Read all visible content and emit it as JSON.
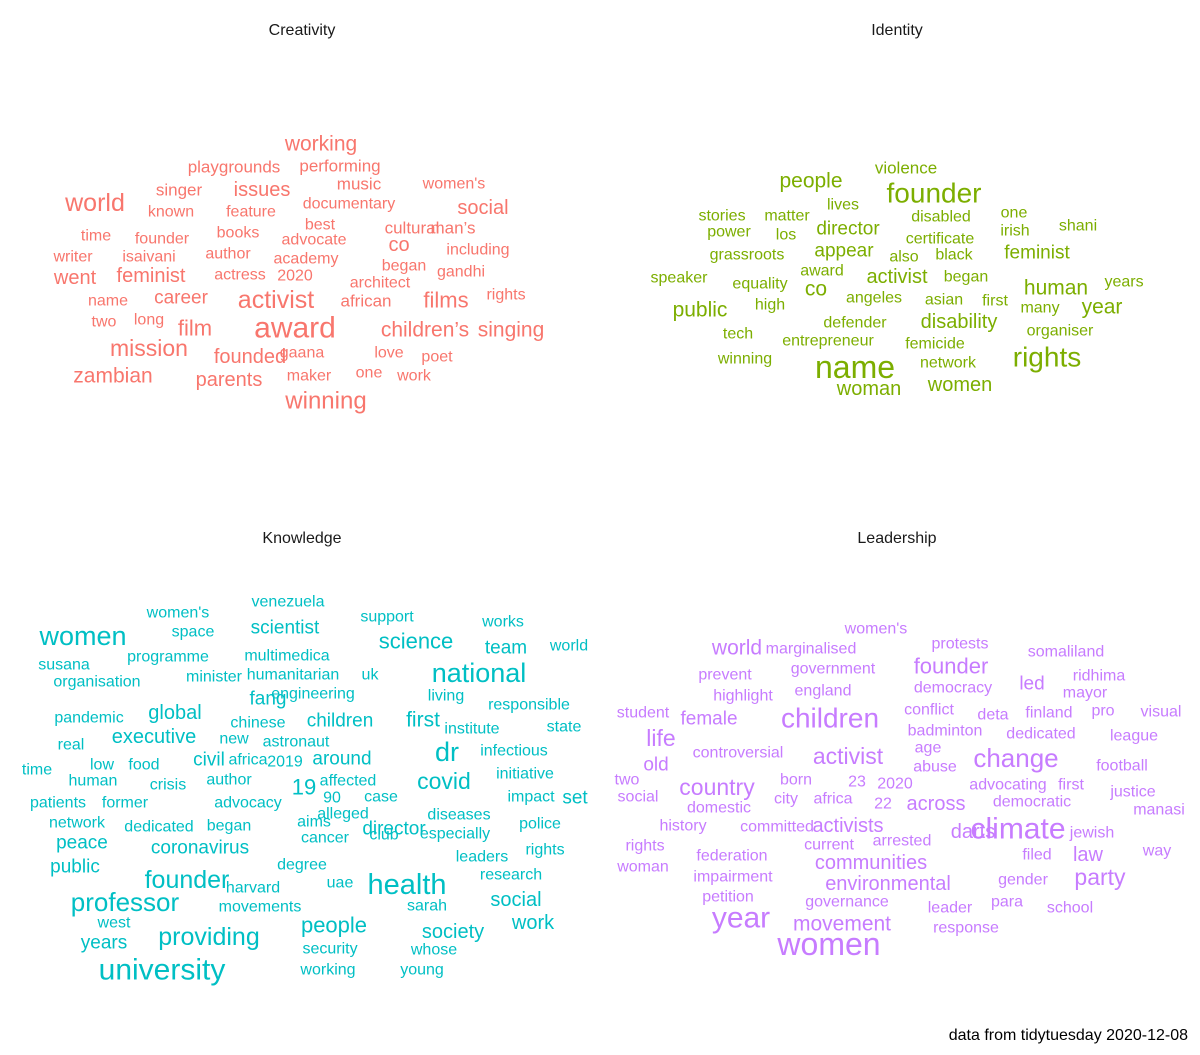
{
  "chart_data": [
    {
      "type": "wordcloud",
      "title": "Creativity",
      "color": "#F8766D",
      "words": [
        {
          "text": "award",
          "size": 30
        },
        {
          "text": "activist",
          "size": 25
        },
        {
          "text": "working",
          "size": 21
        },
        {
          "text": "world",
          "size": 25
        },
        {
          "text": "winning",
          "size": 24
        },
        {
          "text": "films",
          "size": 22
        },
        {
          "text": "mission",
          "size": 23
        },
        {
          "text": "film",
          "size": 22
        },
        {
          "text": "children’s",
          "size": 21
        },
        {
          "text": "singing",
          "size": 21
        },
        {
          "text": "zambian",
          "size": 21
        },
        {
          "text": "parents",
          "size": 20
        },
        {
          "text": "founded",
          "size": 20
        },
        {
          "text": "co",
          "size": 20
        },
        {
          "text": "social",
          "size": 20
        },
        {
          "text": "issues",
          "size": 20
        },
        {
          "text": "feminist",
          "size": 20
        },
        {
          "text": "went",
          "size": 20
        },
        {
          "text": "career",
          "size": 19
        },
        {
          "text": "playgrounds",
          "size": 17
        },
        {
          "text": "performing",
          "size": 17
        },
        {
          "text": "music",
          "size": 17
        },
        {
          "text": "singer",
          "size": 17
        },
        {
          "text": "women's",
          "size": 16
        },
        {
          "text": "known",
          "size": 16
        },
        {
          "text": "feature",
          "size": 16
        },
        {
          "text": "documentary",
          "size": 16
        },
        {
          "text": "best",
          "size": 16
        },
        {
          "text": "time",
          "size": 16
        },
        {
          "text": "founder",
          "size": 16
        },
        {
          "text": "books",
          "size": 16
        },
        {
          "text": "advocate",
          "size": 16
        },
        {
          "text": "cultural",
          "size": 17
        },
        {
          "text": "man’s",
          "size": 17
        },
        {
          "text": "including",
          "size": 16
        },
        {
          "text": "writer",
          "size": 16
        },
        {
          "text": "isaivani",
          "size": 16
        },
        {
          "text": "author",
          "size": 16
        },
        {
          "text": "academy",
          "size": 16
        },
        {
          "text": "began",
          "size": 16
        },
        {
          "text": "actress",
          "size": 16
        },
        {
          "text": "2020",
          "size": 16
        },
        {
          "text": "architect",
          "size": 16
        },
        {
          "text": "gandhi",
          "size": 16
        },
        {
          "text": "name",
          "size": 16
        },
        {
          "text": "african",
          "size": 17
        },
        {
          "text": "rights",
          "size": 16
        },
        {
          "text": "two",
          "size": 16
        },
        {
          "text": "long",
          "size": 16
        },
        {
          "text": "gaana",
          "size": 16
        },
        {
          "text": "love",
          "size": 16
        },
        {
          "text": "poet",
          "size": 16
        },
        {
          "text": "one",
          "size": 16
        },
        {
          "text": "maker",
          "size": 16
        },
        {
          "text": "work",
          "size": 16
        }
      ]
    },
    {
      "type": "wordcloud",
      "title": "Identity",
      "color": "#7CAE00",
      "words": [
        {
          "text": "name",
          "size": 32
        },
        {
          "text": "founder",
          "size": 28
        },
        {
          "text": "rights",
          "size": 28
        },
        {
          "text": "people",
          "size": 21
        },
        {
          "text": "violence",
          "size": 17
        },
        {
          "text": "public",
          "size": 21
        },
        {
          "text": "co",
          "size": 21
        },
        {
          "text": "human",
          "size": 21
        },
        {
          "text": "year",
          "size": 21
        },
        {
          "text": "disability",
          "size": 20
        },
        {
          "text": "woman",
          "size": 20
        },
        {
          "text": "women",
          "size": 20
        },
        {
          "text": "director",
          "size": 19
        },
        {
          "text": "appear",
          "size": 19
        },
        {
          "text": "activist",
          "size": 20
        },
        {
          "text": "feminist",
          "size": 19
        },
        {
          "text": "stories",
          "size": 16
        },
        {
          "text": "matter",
          "size": 16
        },
        {
          "text": "lives",
          "size": 16
        },
        {
          "text": "disabled",
          "size": 16
        },
        {
          "text": "one",
          "size": 16
        },
        {
          "text": "power",
          "size": 16
        },
        {
          "text": "los",
          "size": 16
        },
        {
          "text": "certificate",
          "size": 16
        },
        {
          "text": "irish",
          "size": 16
        },
        {
          "text": "shani",
          "size": 16
        },
        {
          "text": "grassroots",
          "size": 16
        },
        {
          "text": "also",
          "size": 16
        },
        {
          "text": "black",
          "size": 16
        },
        {
          "text": "speaker",
          "size": 16
        },
        {
          "text": "equality",
          "size": 16
        },
        {
          "text": "award",
          "size": 16
        },
        {
          "text": "began",
          "size": 16
        },
        {
          "text": "years",
          "size": 16
        },
        {
          "text": "high",
          "size": 16
        },
        {
          "text": "angeles",
          "size": 16
        },
        {
          "text": "asian",
          "size": 16
        },
        {
          "text": "first",
          "size": 16
        },
        {
          "text": "many",
          "size": 16
        },
        {
          "text": "tech",
          "size": 16
        },
        {
          "text": "defender",
          "size": 16
        },
        {
          "text": "organiser",
          "size": 16
        },
        {
          "text": "entrepreneur",
          "size": 16
        },
        {
          "text": "femicide",
          "size": 16
        },
        {
          "text": "winning",
          "size": 16
        },
        {
          "text": "network",
          "size": 16
        }
      ]
    },
    {
      "type": "wordcloud",
      "title": "Knowledge",
      "color": "#00BFC4",
      "words": [
        {
          "text": "university",
          "size": 30
        },
        {
          "text": "health",
          "size": 29
        },
        {
          "text": "dr",
          "size": 27
        },
        {
          "text": "women",
          "size": 27
        },
        {
          "text": "national",
          "size": 27
        },
        {
          "text": "professor",
          "size": 26
        },
        {
          "text": "founder",
          "size": 25
        },
        {
          "text": "providing",
          "size": 25
        },
        {
          "text": "covid",
          "size": 23
        },
        {
          "text": "science",
          "size": 22
        },
        {
          "text": "19",
          "size": 22
        },
        {
          "text": "people",
          "size": 22
        },
        {
          "text": "first",
          "size": 21
        },
        {
          "text": "scientist",
          "size": 19
        },
        {
          "text": "team",
          "size": 19
        },
        {
          "text": "global",
          "size": 20
        },
        {
          "text": "fang",
          "size": 19
        },
        {
          "text": "executive",
          "size": 20
        },
        {
          "text": "children",
          "size": 19
        },
        {
          "text": "civil",
          "size": 19
        },
        {
          "text": "around",
          "size": 19
        },
        {
          "text": "coronavirus",
          "size": 19
        },
        {
          "text": "director",
          "size": 19
        },
        {
          "text": "social",
          "size": 20
        },
        {
          "text": "work",
          "size": 20
        },
        {
          "text": "society",
          "size": 20
        },
        {
          "text": "years",
          "size": 19
        },
        {
          "text": "public",
          "size": 19
        },
        {
          "text": "peace",
          "size": 19
        },
        {
          "text": "set",
          "size": 19
        },
        {
          "text": "venezuela",
          "size": 16
        },
        {
          "text": "women's",
          "size": 16
        },
        {
          "text": "support",
          "size": 16
        },
        {
          "text": "works",
          "size": 16
        },
        {
          "text": "space",
          "size": 16
        },
        {
          "text": "world",
          "size": 16
        },
        {
          "text": "susana",
          "size": 16
        },
        {
          "text": "programme",
          "size": 16
        },
        {
          "text": "multimedica",
          "size": 16
        },
        {
          "text": "organisation",
          "size": 16
        },
        {
          "text": "minister",
          "size": 16
        },
        {
          "text": "humanitarian",
          "size": 16
        },
        {
          "text": "uk",
          "size": 16
        },
        {
          "text": "engineering",
          "size": 16
        },
        {
          "text": "living",
          "size": 16
        },
        {
          "text": "responsible",
          "size": 16
        },
        {
          "text": "pandemic",
          "size": 16
        },
        {
          "text": "chinese",
          "size": 16
        },
        {
          "text": "institute",
          "size": 16
        },
        {
          "text": "state",
          "size": 16
        },
        {
          "text": "real",
          "size": 16
        },
        {
          "text": "new",
          "size": 16
        },
        {
          "text": "astronaut",
          "size": 16
        },
        {
          "text": "infectious",
          "size": 16
        },
        {
          "text": "time",
          "size": 16
        },
        {
          "text": "low",
          "size": 16
        },
        {
          "text": "food",
          "size": 16
        },
        {
          "text": "africa",
          "size": 16
        },
        {
          "text": "2019",
          "size": 16
        },
        {
          "text": "human",
          "size": 16
        },
        {
          "text": "crisis",
          "size": 16
        },
        {
          "text": "author",
          "size": 16
        },
        {
          "text": "affected",
          "size": 16
        },
        {
          "text": "initiative",
          "size": 16
        },
        {
          "text": "90",
          "size": 16
        },
        {
          "text": "case",
          "size": 16
        },
        {
          "text": "impact",
          "size": 16
        },
        {
          "text": "patients",
          "size": 16
        },
        {
          "text": "former",
          "size": 16
        },
        {
          "text": "advocacy",
          "size": 16
        },
        {
          "text": "alleged",
          "size": 16
        },
        {
          "text": "diseases",
          "size": 16
        },
        {
          "text": "network",
          "size": 16
        },
        {
          "text": "aims",
          "size": 16
        },
        {
          "text": "police",
          "size": 16
        },
        {
          "text": "dedicated",
          "size": 16
        },
        {
          "text": "began",
          "size": 16
        },
        {
          "text": "cancer",
          "size": 16
        },
        {
          "text": "club",
          "size": 16
        },
        {
          "text": "especially",
          "size": 16
        },
        {
          "text": "rights",
          "size": 16
        },
        {
          "text": "leaders",
          "size": 16
        },
        {
          "text": "degree",
          "size": 16
        },
        {
          "text": "research",
          "size": 16
        },
        {
          "text": "harvard",
          "size": 16
        },
        {
          "text": "uae",
          "size": 16
        },
        {
          "text": "west",
          "size": 16
        },
        {
          "text": "movements",
          "size": 16
        },
        {
          "text": "sarah",
          "size": 16
        },
        {
          "text": "security",
          "size": 16
        },
        {
          "text": "whose",
          "size": 16
        },
        {
          "text": "working",
          "size": 16
        },
        {
          "text": "young",
          "size": 16
        }
      ]
    },
    {
      "type": "wordcloud",
      "title": "Leadership",
      "color": "#C77CFF",
      "words": [
        {
          "text": "women",
          "size": 32
        },
        {
          "text": "climate",
          "size": 30
        },
        {
          "text": "year",
          "size": 30
        },
        {
          "text": "children",
          "size": 28
        },
        {
          "text": "change",
          "size": 26
        },
        {
          "text": "country",
          "size": 23
        },
        {
          "text": "activist",
          "size": 23
        },
        {
          "text": "party",
          "size": 23
        },
        {
          "text": "life",
          "size": 23
        },
        {
          "text": "founder",
          "size": 22
        },
        {
          "text": "movement",
          "size": 21
        },
        {
          "text": "world",
          "size": 21
        },
        {
          "text": "communities",
          "size": 20
        },
        {
          "text": "environmental",
          "size": 20
        },
        {
          "text": "activists",
          "size": 20
        },
        {
          "text": "across",
          "size": 20
        },
        {
          "text": "darts",
          "size": 20
        },
        {
          "text": "law",
          "size": 20
        },
        {
          "text": "female",
          "size": 19
        },
        {
          "text": "led",
          "size": 19
        },
        {
          "text": "old",
          "size": 19
        },
        {
          "text": "women's",
          "size": 16
        },
        {
          "text": "protests",
          "size": 16
        },
        {
          "text": "marginalised",
          "size": 16
        },
        {
          "text": "somaliland",
          "size": 16
        },
        {
          "text": "prevent",
          "size": 16
        },
        {
          "text": "government",
          "size": 16
        },
        {
          "text": "ridhima",
          "size": 16
        },
        {
          "text": "highlight",
          "size": 16
        },
        {
          "text": "england",
          "size": 16
        },
        {
          "text": "democracy",
          "size": 16
        },
        {
          "text": "mayor",
          "size": 16
        },
        {
          "text": "student",
          "size": 16
        },
        {
          "text": "conflict",
          "size": 16
        },
        {
          "text": "deta",
          "size": 16
        },
        {
          "text": "finland",
          "size": 16
        },
        {
          "text": "pro",
          "size": 16
        },
        {
          "text": "visual",
          "size": 16
        },
        {
          "text": "badminton",
          "size": 16
        },
        {
          "text": "dedicated",
          "size": 16
        },
        {
          "text": "league",
          "size": 16
        },
        {
          "text": "controversial",
          "size": 16
        },
        {
          "text": "age",
          "size": 16
        },
        {
          "text": "abuse",
          "size": 16
        },
        {
          "text": "football",
          "size": 16
        },
        {
          "text": "two",
          "size": 16
        },
        {
          "text": "born",
          "size": 16
        },
        {
          "text": "23",
          "size": 16
        },
        {
          "text": "2020",
          "size": 16
        },
        {
          "text": "advocating",
          "size": 16
        },
        {
          "text": "first",
          "size": 16
        },
        {
          "text": "social",
          "size": 16
        },
        {
          "text": "city",
          "size": 16
        },
        {
          "text": "africa",
          "size": 16
        },
        {
          "text": "22",
          "size": 16
        },
        {
          "text": "democratic",
          "size": 16
        },
        {
          "text": "justice",
          "size": 16
        },
        {
          "text": "domestic",
          "size": 16
        },
        {
          "text": "manasi",
          "size": 16
        },
        {
          "text": "history",
          "size": 16
        },
        {
          "text": "committed",
          "size": 16
        },
        {
          "text": "jewish",
          "size": 16
        },
        {
          "text": "rights",
          "size": 16
        },
        {
          "text": "current",
          "size": 16
        },
        {
          "text": "arrested",
          "size": 16
        },
        {
          "text": "federation",
          "size": 16
        },
        {
          "text": "filed",
          "size": 16
        },
        {
          "text": "way",
          "size": 16
        },
        {
          "text": "woman",
          "size": 16
        },
        {
          "text": "impairment",
          "size": 16
        },
        {
          "text": "gender",
          "size": 16
        },
        {
          "text": "petition",
          "size": 16
        },
        {
          "text": "governance",
          "size": 16
        },
        {
          "text": "leader",
          "size": 16
        },
        {
          "text": "para",
          "size": 16
        },
        {
          "text": "school",
          "size": 16
        },
        {
          "text": "response",
          "size": 16
        }
      ]
    }
  ],
  "caption": "data from tidytuesday 2020-12-08"
}
